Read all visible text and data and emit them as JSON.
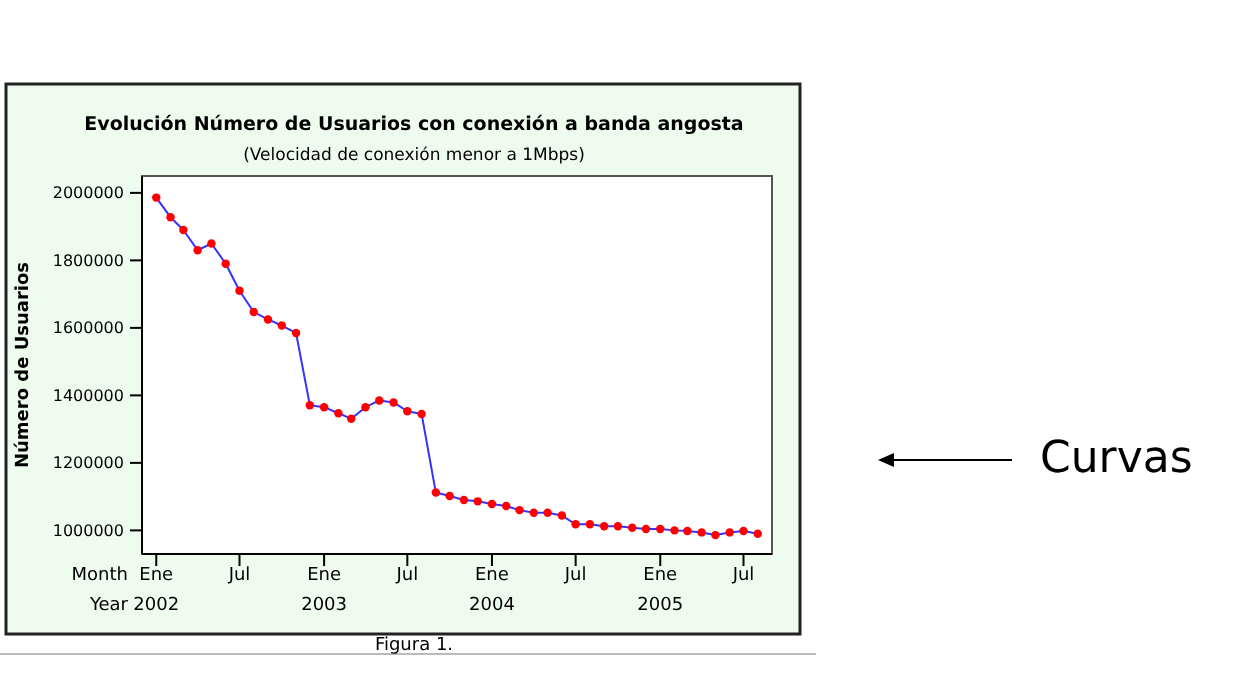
{
  "chart_data": {
    "type": "line",
    "title": "Evolución  Número de Usuarios con conexión a banda angosta",
    "subtitle": "(Velocidad de conexión menor a  1Mbps)",
    "ylabel": "Número de Usuarios",
    "annotations": [
      "Month",
      "Year",
      "Figura 1.",
      "Curvas"
    ],
    "x": [
      "2002-01",
      "2002-02",
      "2002-03",
      "2002-04",
      "2002-05",
      "2002-06",
      "2002-07",
      "2002-08",
      "2002-09",
      "2002-10",
      "2002-11",
      "2002-12",
      "2003-01",
      "2003-02",
      "2003-03",
      "2003-04",
      "2003-05",
      "2003-06",
      "2003-07",
      "2003-08",
      "2003-09",
      "2003-10",
      "2003-11",
      "2003-12",
      "2004-01",
      "2004-02",
      "2004-03",
      "2004-04",
      "2004-05",
      "2004-06",
      "2004-07",
      "2004-08",
      "2004-09",
      "2004-10",
      "2004-11",
      "2004-12",
      "2005-01",
      "2005-02",
      "2005-03",
      "2005-04",
      "2005-05",
      "2005-06",
      "2005-07",
      "2005-08"
    ],
    "series": [
      {
        "color": "#3333ff",
        "colors": [
          "#ff0000",
          "#ff0000",
          "#ff0000",
          "#ff0000",
          "#ff0000",
          "#ff0000",
          "#ff0000",
          "#ff0000",
          "#ff0000",
          "#ff0000",
          "#ff0000",
          "#ff0000",
          "#ff0000",
          "#ff0000",
          "#ff0000",
          "#ff0000",
          "#ff0000",
          "#ff0000",
          "#ff0000",
          "#ff0000",
          "#ff0000",
          "#ff0000",
          "#ff0000",
          "#ff0000",
          "#ff0000",
          "#ff0000",
          "#ff0000",
          "#ff0000",
          "#ff0000",
          "#ff0000",
          "#ff0000",
          "#ff0000",
          "#ff0000",
          "#ff0000",
          "#ff0000",
          "#ff0000",
          "#ff0000",
          "#ff0000",
          "#ff0000",
          "#ff0000",
          "#ff0000",
          "#ff0000",
          "#ff0000",
          "#ff0000"
        ],
        "values": [
          1986000,
          1928000,
          1890000,
          1830000,
          1850000,
          1790000,
          1710000,
          1647000,
          1625000,
          1607000,
          1585000,
          1371000,
          1365000,
          1347000,
          1331000,
          1365000,
          1385000,
          1379000,
          1353000,
          1345000,
          1112000,
          1102000,
          1090000,
          1086000,
          1078000,
          1072000,
          1060000,
          1052000,
          1052000,
          1044000,
          1018000,
          1018000,
          1012000,
          1012000,
          1008000,
          1004000,
          1004000,
          1000000,
          998000,
          994000,
          986000,
          994000,
          998000,
          990000
        ]
      }
    ],
    "xlim": [
      "2001-12",
      "2005-09"
    ],
    "xticks": [
      {
        "value": "2002-01",
        "label": "Ene\n2002"
      },
      {
        "value": "2002-07",
        "label": "Jul"
      },
      {
        "value": "2003-01",
        "label": "Ene\n2003"
      },
      {
        "value": "2003-07",
        "label": "Jul"
      },
      {
        "value": "2004-01",
        "label": "Ene\n2004"
      },
      {
        "value": "2004-07",
        "label": "Jul"
      },
      {
        "value": "2005-01",
        "label": "Ene\n2005"
      },
      {
        "value": "2005-07",
        "label": "Jul"
      }
    ],
    "ylim": [
      930000,
      2050000
    ],
    "yticks": [
      1000000,
      1200000,
      1400000,
      1600000,
      1800000,
      2000000
    ],
    "grid": false,
    "marker": "circle",
    "line_style": "solid"
  }
}
